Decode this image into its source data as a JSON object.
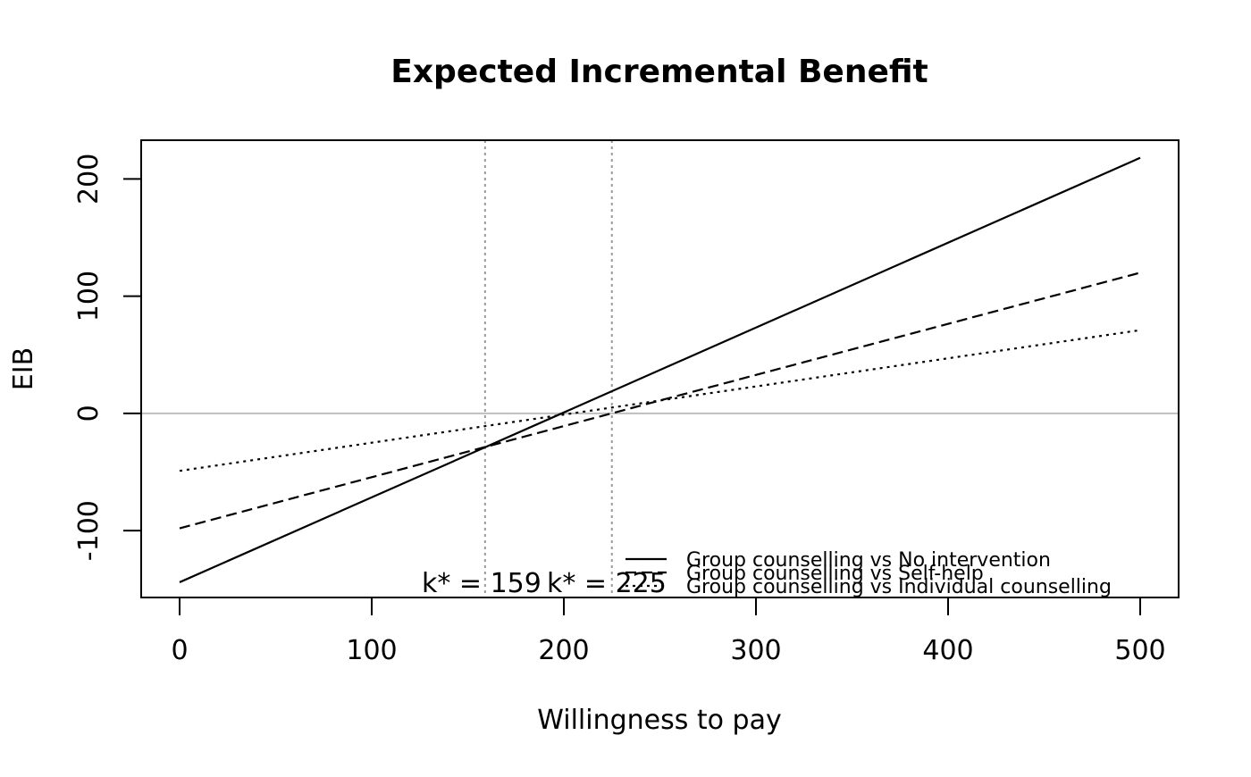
{
  "chart_data": {
    "type": "line",
    "title": "Expected Incremental Benefit",
    "xlabel": "Willingness to pay",
    "ylabel": "EIB",
    "xlim": [
      -20,
      520
    ],
    "ylim": [
      -157,
      233
    ],
    "x_ticks": [
      0,
      100,
      200,
      300,
      400,
      500
    ],
    "x_tick_labels": [
      "0",
      "100",
      "200",
      "300",
      "400",
      "500"
    ],
    "y_ticks": [
      -100,
      0,
      100,
      200
    ],
    "y_tick_labels": [
      "-100",
      "0",
      "100",
      "200"
    ],
    "grid": false,
    "legend_position": "bottom-right",
    "zero_line_color": "#bebebe",
    "kstar_line_color": "#9a9a9a",
    "series": [
      {
        "name": "Group counselling vs No intervention",
        "dash": "solid",
        "x": [
          0,
          500
        ],
        "y": [
          -144,
          218
        ]
      },
      {
        "name": "Group counselling vs Self-help",
        "dash": "dashed",
        "x": [
          0,
          500
        ],
        "y": [
          -98,
          120
        ]
      },
      {
        "name": "Group counselling vs Individual counselling",
        "dash": "dotted",
        "x": [
          0,
          500
        ],
        "y": [
          -49,
          71
        ]
      }
    ],
    "kstar": [
      {
        "value": 159,
        "label": "k* = 159"
      },
      {
        "value": 225,
        "label": "k* = 225"
      }
    ]
  }
}
